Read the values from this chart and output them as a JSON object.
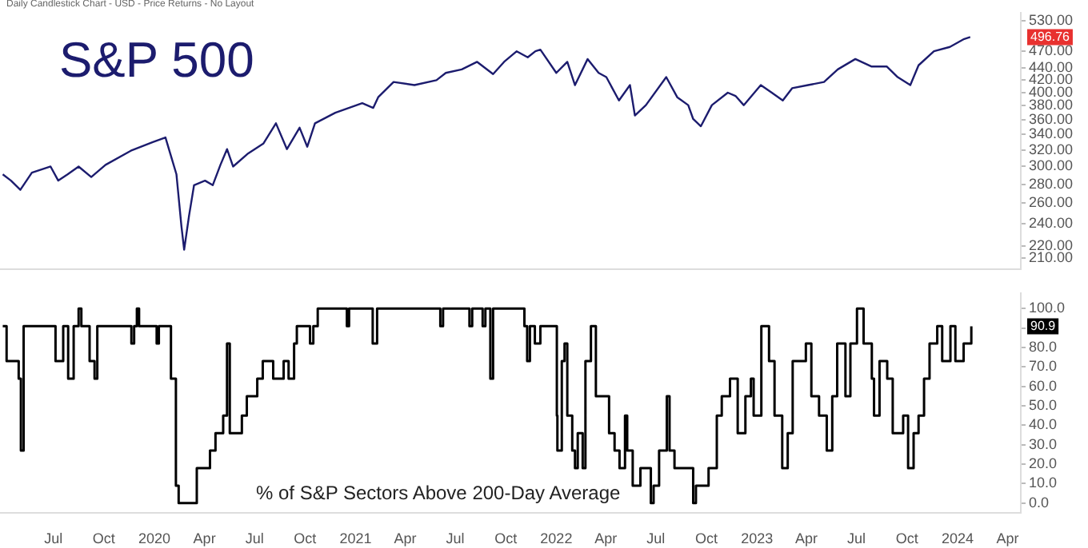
{
  "chart_data": [
    {
      "type": "line",
      "title": "S&P 500",
      "subtitle": "Daily Candlestick Chart - USD - Price Returns - No Layout",
      "color": "#1c1c6e",
      "marker": "none",
      "line_style": "solid",
      "log": "y",
      "tick_labels": "y",
      "x": [
        "2019-03-31",
        "2019-04-15",
        "2019-05-02",
        "2019-05-23",
        "2019-06-26",
        "2019-07-10",
        "2019-07-27",
        "2019-08-16",
        "2019-09-08",
        "2019-10-04",
        "2019-11-19",
        "2019-12-29",
        "2020-01-21",
        "2020-01-30",
        "2020-02-10",
        "2020-02-19",
        "2020-02-24",
        "2020-03-04",
        "2020-03-13",
        "2020-04-02",
        "2020-04-16",
        "2020-04-30",
        "2020-05-12",
        "2020-05-23",
        "2020-06-18",
        "2020-07-17",
        "2020-08-09",
        "2020-08-29",
        "2020-09-21",
        "2020-10-05",
        "2020-10-19",
        "2020-11-25",
        "2021-01-13",
        "2021-02-02",
        "2021-02-11",
        "2021-03-11",
        "2021-04-18",
        "2021-05-28",
        "2021-06-14",
        "2021-07-13",
        "2021-08-10",
        "2021-09-08",
        "2021-09-28",
        "2021-10-21",
        "2021-11-10",
        "2021-11-24",
        "2021-12-03",
        "2022-01-01",
        "2022-01-21",
        "2022-02-04",
        "2022-02-27",
        "2022-03-19",
        "2022-04-02",
        "2022-04-25",
        "2022-05-15",
        "2022-05-24",
        "2022-06-13",
        "2022-07-20",
        "2022-08-09",
        "2022-08-29",
        "2022-09-07",
        "2022-09-21",
        "2022-10-11",
        "2022-11-09",
        "2022-11-23",
        "2022-12-08",
        "2023-01-08",
        "2023-01-28",
        "2023-02-17",
        "2023-03-06",
        "2023-04-04",
        "2023-05-03",
        "2023-05-28",
        "2023-06-29",
        "2023-07-28",
        "2023-08-25",
        "2023-09-14",
        "2023-10-07",
        "2023-10-22",
        "2023-11-19",
        "2023-12-18",
        "2024-01-13",
        "2024-01-24"
      ],
      "values": [
        291,
        284,
        274,
        293,
        300,
        284,
        291,
        300,
        288,
        302,
        319,
        330,
        336,
        315,
        291,
        238,
        217,
        248,
        279,
        284,
        279,
        302,
        321,
        300,
        315,
        328,
        355,
        321,
        349,
        324,
        355,
        370,
        384,
        377,
        393,
        417,
        412,
        420,
        432,
        438,
        451,
        430,
        451,
        470,
        459,
        470,
        473,
        432,
        451,
        412,
        456,
        432,
        425,
        388,
        412,
        366,
        381,
        425,
        393,
        381,
        361,
        351,
        381,
        400,
        395,
        381,
        412,
        400,
        388,
        407,
        412,
        417,
        438,
        456,
        443,
        443,
        425,
        412,
        445,
        470,
        478,
        493,
        496.76
      ],
      "xlim": [
        "2019-03-26",
        "2024-04-25"
      ],
      "ylim": [
        201,
        546
      ],
      "yticks": [
        {
          "value": 210,
          "label": "210.00"
        },
        {
          "value": 220,
          "label": "220.00"
        },
        {
          "value": 240,
          "label": "240.00"
        },
        {
          "value": 260,
          "label": "260.00"
        },
        {
          "value": 280,
          "label": "280.00"
        },
        {
          "value": 300,
          "label": "300.00"
        },
        {
          "value": 320,
          "label": "320.00"
        },
        {
          "value": 340,
          "label": "340.00"
        },
        {
          "value": 360,
          "label": "360.00"
        },
        {
          "value": 380,
          "label": "380.00"
        },
        {
          "value": 400,
          "label": "400.00"
        },
        {
          "value": 420,
          "label": "420.00"
        },
        {
          "value": 440,
          "label": "440.00"
        },
        {
          "value": 470,
          "label": "470.00"
        },
        {
          "value": 530,
          "label": "530.00"
        }
      ],
      "annotations": [
        "496.76"
      ]
    },
    {
      "type": "step",
      "color": "#000000",
      "marker": "none",
      "line_style": "solid",
      "x": [
        "2019-03-31",
        "2019-04-07",
        "2019-04-29",
        "2019-05-03",
        "2019-05-08",
        "2019-07-05",
        "2019-07-19",
        "2019-07-28",
        "2019-08-07",
        "2019-08-16",
        "2019-08-21",
        "2019-09-05",
        "2019-09-14",
        "2019-09-19",
        "2019-11-20",
        "2019-11-25",
        "2019-11-30",
        "2019-12-04",
        "2020-01-05",
        "2020-01-09",
        "2020-01-31",
        "2020-02-09",
        "2020-02-14",
        "2020-03-18",
        "2020-04-11",
        "2020-04-21",
        "2020-05-05",
        "2020-05-12",
        "2020-05-17",
        "2020-06-08",
        "2020-06-17",
        "2020-07-06",
        "2020-07-16",
        "2020-08-04",
        "2020-08-23",
        "2020-09-01",
        "2020-09-11",
        "2020-09-16",
        "2020-10-10",
        "2020-10-16",
        "2020-10-24",
        "2020-12-16",
        "2020-12-20",
        "2021-02-01",
        "2021-02-09",
        "2021-06-04",
        "2021-06-09",
        "2021-07-27",
        "2021-08-01",
        "2021-08-20",
        "2021-08-25",
        "2021-09-03",
        "2021-09-08",
        "2021-11-04",
        "2021-11-09",
        "2021-11-14",
        "2021-11-23",
        "2021-12-03",
        "2022-01-02",
        "2022-01-03",
        "2022-01-11",
        "2022-01-16",
        "2022-01-21",
        "2022-01-30",
        "2022-02-04",
        "2022-02-09",
        "2022-02-18",
        "2022-02-23",
        "2022-03-05",
        "2022-03-14",
        "2022-04-07",
        "2022-04-17",
        "2022-04-26",
        "2022-05-06",
        "2022-05-10",
        "2022-05-20",
        "2022-06-03",
        "2022-06-22",
        "2022-06-27",
        "2022-07-07",
        "2022-07-21",
        "2022-07-26",
        "2022-08-04",
        "2022-09-07",
        "2022-09-12",
        "2022-10-05",
        "2022-10-20",
        "2022-10-29",
        "2022-11-13",
        "2022-11-27",
        "2022-12-11",
        "2022-12-21",
        "2022-12-26",
        "2023-01-09",
        "2023-01-23",
        "2023-02-02",
        "2023-02-16",
        "2023-02-26",
        "2023-03-07",
        "2023-03-31",
        "2023-04-10",
        "2023-04-24",
        "2023-05-08",
        "2023-05-18",
        "2023-05-27",
        "2023-06-11",
        "2023-06-20",
        "2023-07-02",
        "2023-07-14",
        "2023-07-29",
        "2023-08-02",
        "2023-08-12",
        "2023-08-26",
        "2023-09-05",
        "2023-09-24",
        "2023-10-03",
        "2023-10-13",
        "2023-10-22",
        "2023-11-01",
        "2023-11-11",
        "2023-11-25",
        "2023-12-04",
        "2023-12-19",
        "2023-12-28",
        "2024-01-12",
        "2024-01-26"
      ],
      "values": [
        91,
        73,
        64,
        27,
        91,
        73,
        91,
        64,
        91,
        100,
        91,
        73,
        64,
        91,
        82,
        91,
        100,
        91,
        82,
        91,
        64,
        9,
        0,
        18,
        27,
        36,
        45,
        82,
        36,
        45,
        55,
        64,
        73,
        64,
        73,
        64,
        82,
        91,
        82,
        91,
        100,
        91,
        100,
        82,
        100,
        91,
        100,
        91,
        100,
        91,
        100,
        64,
        100,
        91,
        73,
        91,
        82,
        91,
        45,
        27,
        73,
        82,
        45,
        27,
        18,
        36,
        18,
        73,
        91,
        55,
        36,
        27,
        18,
        45,
        27,
        9,
        18,
        0,
        9,
        27,
        55,
        27,
        18,
        0,
        9,
        18,
        45,
        55,
        64,
        36,
        55,
        64,
        45,
        91,
        73,
        45,
        18,
        36,
        73,
        82,
        55,
        45,
        27,
        55,
        82,
        55,
        82,
        100,
        82,
        64,
        45,
        73,
        64,
        36,
        45,
        18,
        36,
        45,
        64,
        82,
        91,
        73,
        91,
        73,
        82,
        90.9
      ],
      "xlim": [
        "2019-03-26",
        "2024-04-25"
      ],
      "ylim": [
        -5,
        108
      ],
      "xticks": [
        {
          "value": "2019-07-01",
          "label": "Jul"
        },
        {
          "value": "2019-10-01",
          "label": "Oct"
        },
        {
          "value": "2020-01-01",
          "label": "2020"
        },
        {
          "value": "2020-04-01",
          "label": "Apr"
        },
        {
          "value": "2020-07-01",
          "label": "Jul"
        },
        {
          "value": "2020-10-01",
          "label": "Oct"
        },
        {
          "value": "2021-01-01",
          "label": "2021"
        },
        {
          "value": "2021-04-01",
          "label": "Apr"
        },
        {
          "value": "2021-07-01",
          "label": "Jul"
        },
        {
          "value": "2021-10-01",
          "label": "Oct"
        },
        {
          "value": "2022-01-01",
          "label": "2022"
        },
        {
          "value": "2022-04-01",
          "label": "Apr"
        },
        {
          "value": "2022-07-01",
          "label": "Jul"
        },
        {
          "value": "2022-10-01",
          "label": "Oct"
        },
        {
          "value": "2023-01-01",
          "label": "2023"
        },
        {
          "value": "2023-04-01",
          "label": "Apr"
        },
        {
          "value": "2023-07-01",
          "label": "Jul"
        },
        {
          "value": "2023-10-01",
          "label": "Oct"
        },
        {
          "value": "2024-01-01",
          "label": "2024"
        },
        {
          "value": "2024-04-01",
          "label": "Apr"
        }
      ],
      "yticks": [
        {
          "value": 0,
          "label": "0.0"
        },
        {
          "value": 10,
          "label": "10.0"
        },
        {
          "value": 20,
          "label": "20.0"
        },
        {
          "value": 30,
          "label": "30.0"
        },
        {
          "value": 40,
          "label": "40.0"
        },
        {
          "value": 50,
          "label": "50.0"
        },
        {
          "value": 60,
          "label": "60.0"
        },
        {
          "value": 70,
          "label": "70.0"
        },
        {
          "value": 80,
          "label": "80.0"
        },
        {
          "value": 90,
          "label": null
        },
        {
          "value": 100,
          "label": "100.0"
        }
      ],
      "annotations": [
        "% of S&P Sectors Above 200-Day Average",
        "90.9"
      ]
    }
  ]
}
